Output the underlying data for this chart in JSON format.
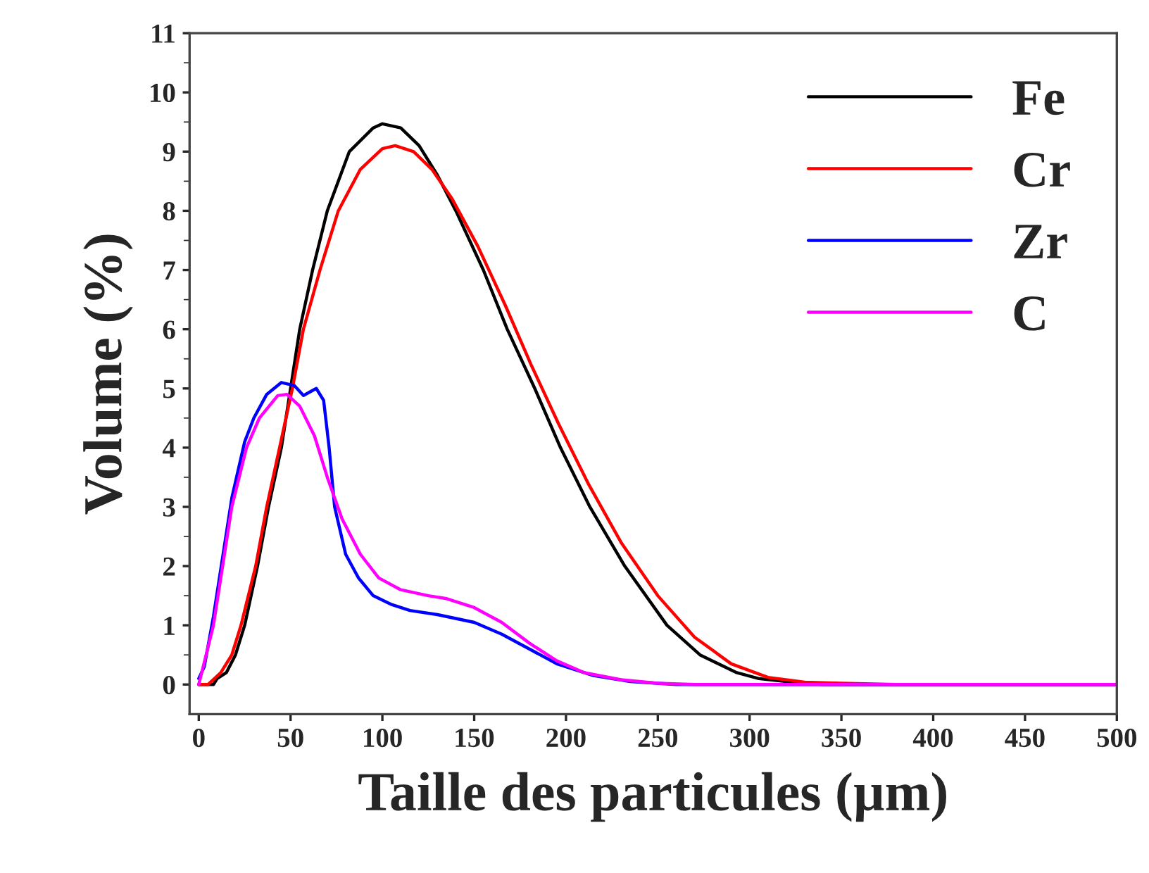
{
  "chart_data": {
    "type": "line",
    "xlabel": "Taille des particules (µm)",
    "ylabel": "Volume (%)",
    "xlim": [
      -5,
      500
    ],
    "ylim": [
      -0.5,
      11
    ],
    "xticks": [
      0,
      50,
      100,
      150,
      200,
      250,
      300,
      350,
      400,
      450,
      500
    ],
    "yticks": [
      0,
      1,
      2,
      3,
      4,
      5,
      6,
      7,
      8,
      9,
      10,
      11
    ],
    "grid": false,
    "legend": "top right",
    "marker": "none",
    "line_style": "solid",
    "series": [
      {
        "name": "Fe",
        "color": "#000000",
        "x": [
          0,
          8,
          10,
          15,
          20,
          25,
          32,
          38,
          45,
          50,
          55,
          62,
          70,
          82,
          95,
          100,
          110,
          120,
          130,
          140,
          155,
          168,
          183,
          197,
          213,
          232,
          255,
          273,
          293,
          305,
          320,
          340,
          500
        ],
        "values": [
          0,
          0,
          0.1,
          0.2,
          0.5,
          1,
          2,
          3,
          4,
          5,
          6,
          7,
          8,
          9,
          9.4,
          9.47,
          9.4,
          9.1,
          8.6,
          8,
          7,
          6,
          5,
          4,
          3,
          2,
          1,
          0.5,
          0.2,
          0.1,
          0.05,
          0,
          0
        ]
      },
      {
        "name": "Cr",
        "color": "#ff0000",
        "x": [
          0,
          5,
          12,
          18,
          23,
          31,
          37,
          44,
          51,
          57,
          66,
          76,
          88,
          100,
          107,
          117,
          127,
          138,
          152,
          167,
          181,
          196,
          212,
          230,
          250,
          270,
          290,
          310,
          330,
          350,
          380,
          500
        ],
        "values": [
          0,
          0,
          0.2,
          0.5,
          1,
          2,
          3,
          4,
          5,
          6,
          7,
          8,
          8.7,
          9.05,
          9.1,
          9,
          8.7,
          8.2,
          7.4,
          6.4,
          5.4,
          4.4,
          3.4,
          2.4,
          1.5,
          0.8,
          0.35,
          0.12,
          0.04,
          0.02,
          0,
          0
        ]
      },
      {
        "name": "Zr",
        "color": "#0000ff",
        "x": [
          0,
          3,
          8,
          13,
          18,
          25,
          30,
          37,
          45,
          52,
          57,
          61,
          64,
          68,
          71,
          74,
          80,
          87,
          95,
          105,
          115,
          130,
          150,
          165,
          180,
          195,
          215,
          235,
          260,
          500
        ],
        "values": [
          0.1,
          0.3,
          1.15,
          2.15,
          3.15,
          4.1,
          4.5,
          4.9,
          5.1,
          5.05,
          4.88,
          4.95,
          5,
          4.8,
          4,
          3,
          2.2,
          1.8,
          1.5,
          1.35,
          1.25,
          1.18,
          1.05,
          0.85,
          0.6,
          0.35,
          0.15,
          0.05,
          0,
          0
        ]
      },
      {
        "name": "C",
        "color": "#ff00ff",
        "x": [
          0,
          4,
          8,
          13,
          18,
          26,
          33,
          43,
          48,
          55,
          63,
          70,
          78,
          88,
          98,
          110,
          125,
          135,
          150,
          165,
          180,
          195,
          210,
          230,
          250,
          270,
          500
        ],
        "values": [
          0,
          0.5,
          1,
          2,
          3,
          4,
          4.5,
          4.88,
          4.9,
          4.7,
          4.2,
          3.5,
          2.8,
          2.2,
          1.8,
          1.6,
          1.5,
          1.45,
          1.3,
          1.05,
          0.7,
          0.4,
          0.2,
          0.08,
          0.02,
          0,
          0
        ]
      }
    ]
  }
}
